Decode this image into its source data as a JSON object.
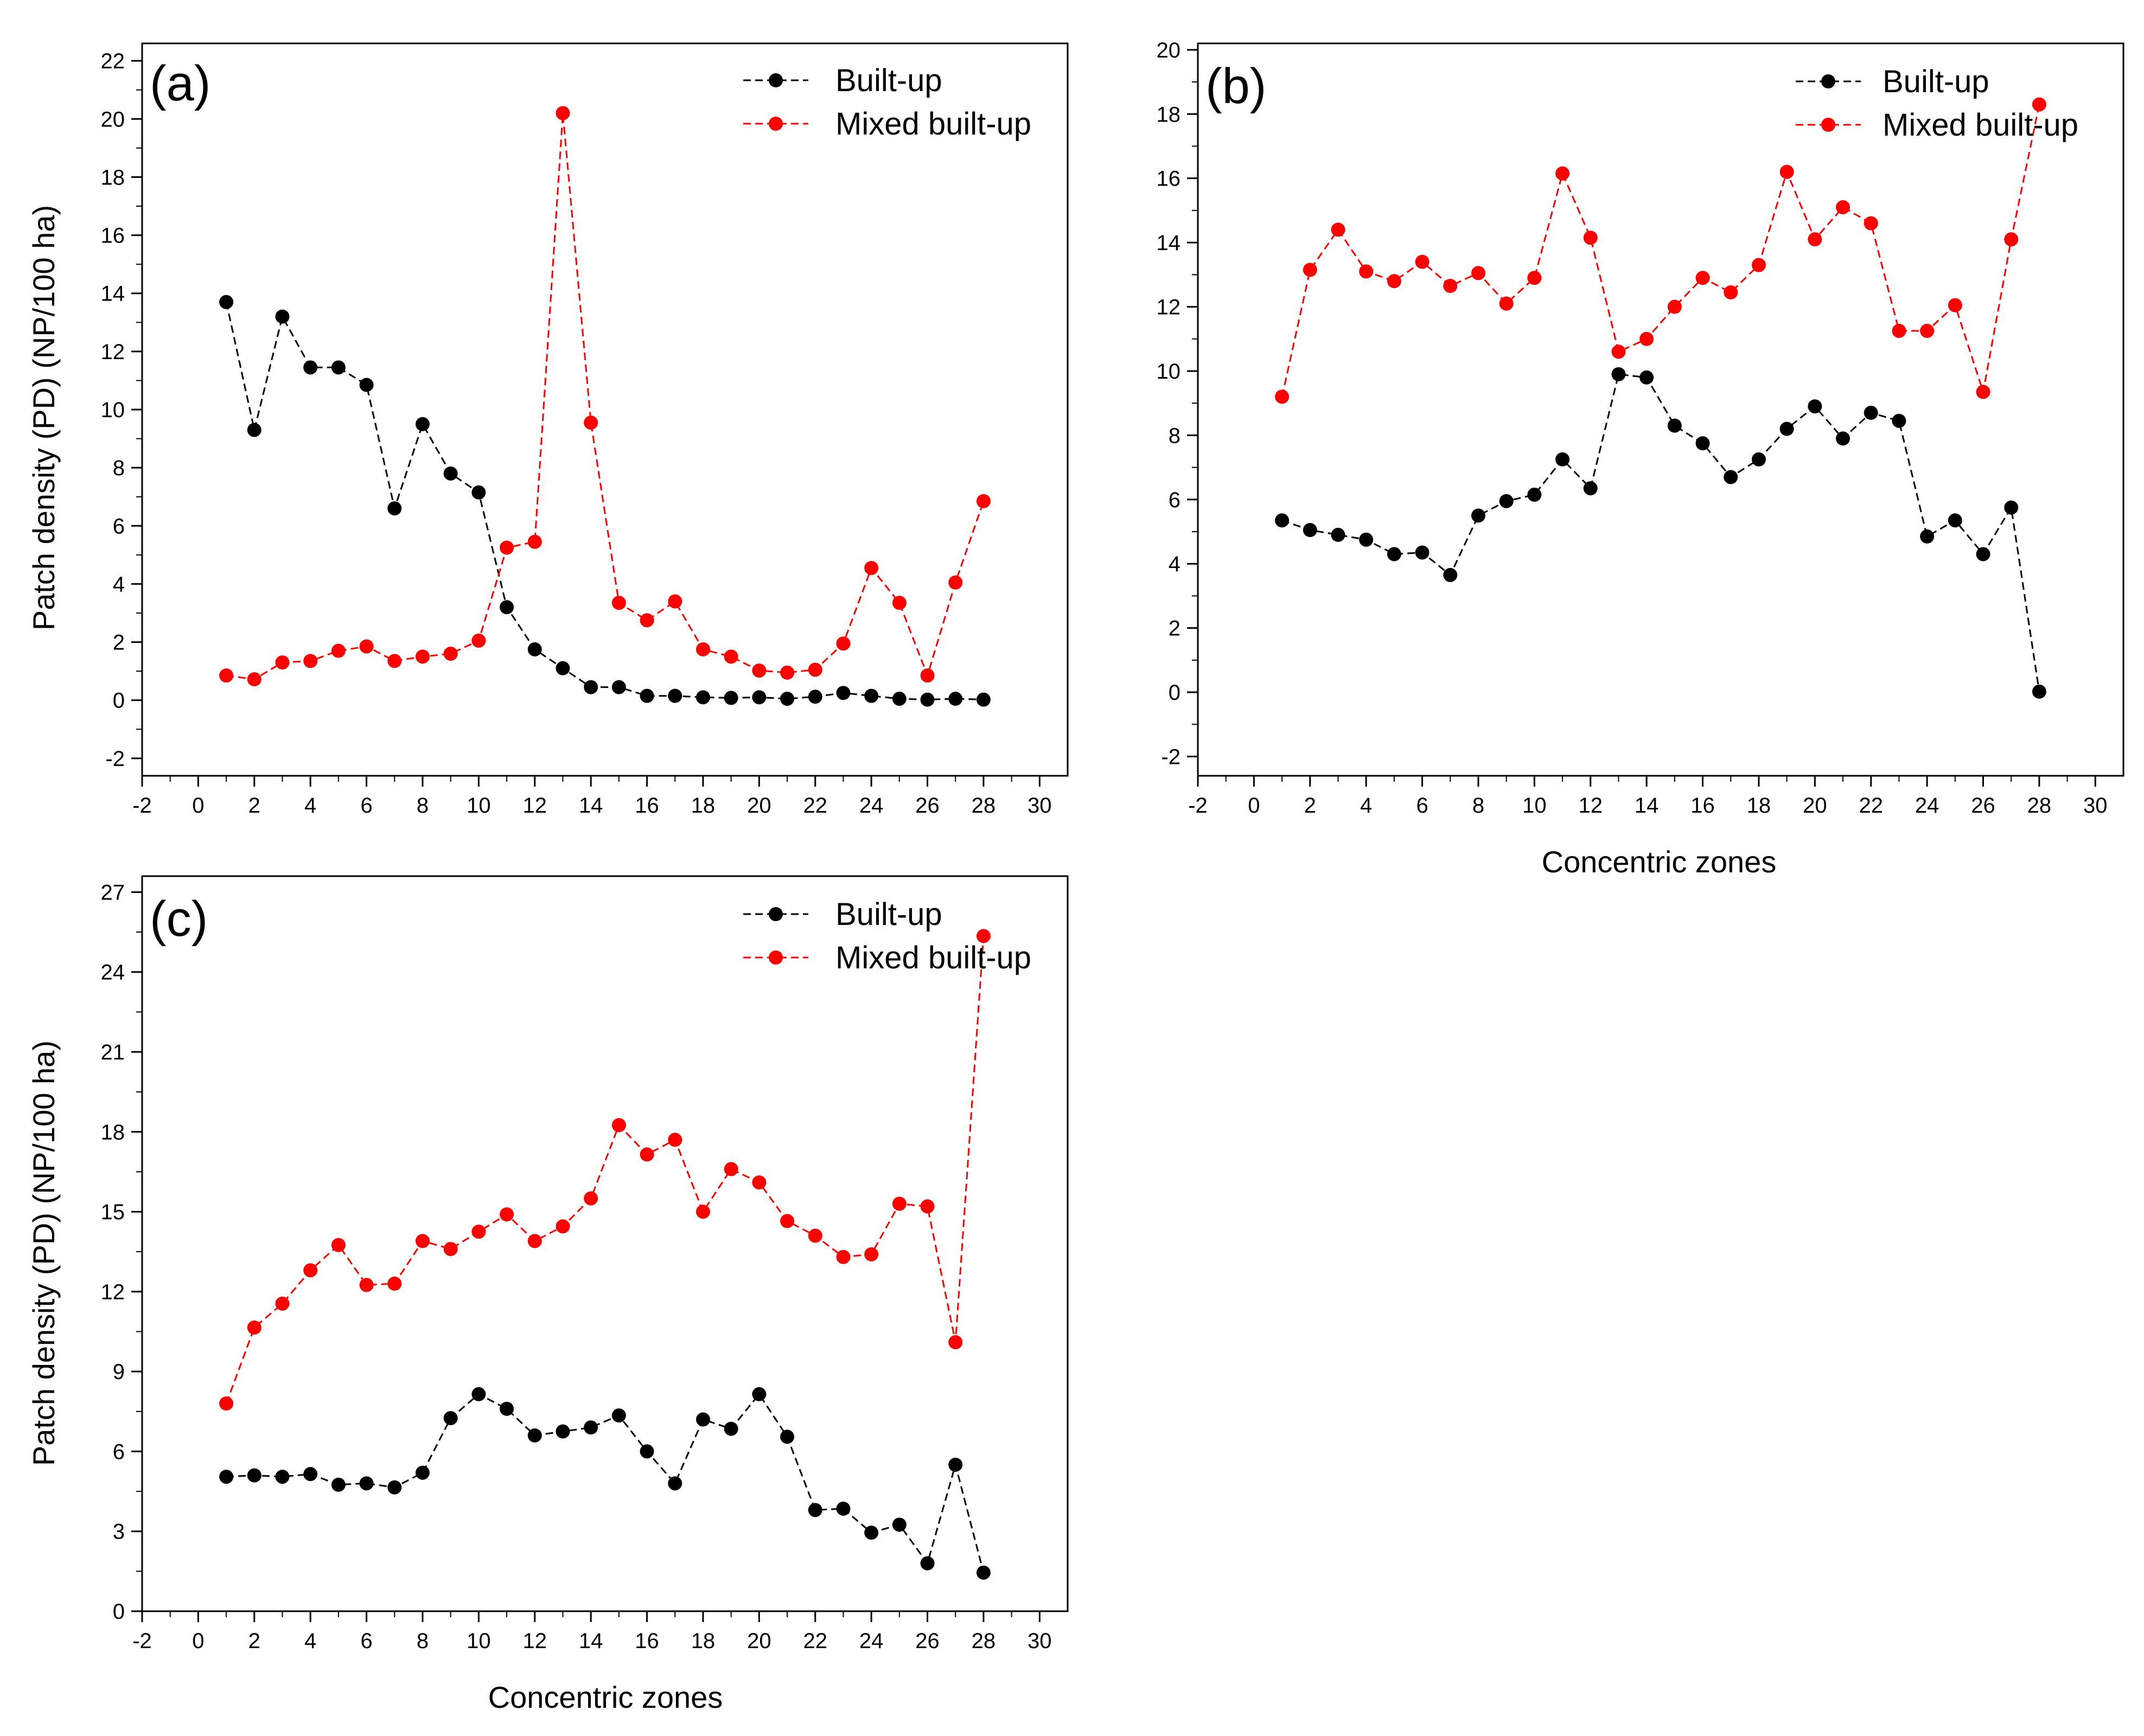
{
  "colors": {
    "built_up": "#000000",
    "mixed_built_up": "#ff0000",
    "axis": "#000000",
    "background": "#ffffff"
  },
  "chart_data": [
    {
      "type": "line",
      "panel": "(a)",
      "xlabel": "",
      "ylabel": "Patch density (PD) (NP/100 ha)",
      "xlim": [
        -2,
        31
      ],
      "ylim": [
        -2.6,
        22.6
      ],
      "xticks": [
        -2,
        0,
        2,
        4,
        6,
        8,
        10,
        12,
        14,
        16,
        18,
        20,
        22,
        24,
        26,
        28,
        30
      ],
      "yticks": [
        -2,
        0,
        2,
        4,
        6,
        8,
        10,
        12,
        14,
        16,
        18,
        20,
        22
      ],
      "tick_labels_x": [
        "-2",
        "0",
        "2",
        "4",
        "6",
        "8",
        "10",
        "12",
        "14",
        "16",
        "18",
        "20",
        "22",
        "24",
        "26",
        "28",
        "30"
      ],
      "tick_labels_y": [
        "-2",
        "0",
        "2",
        "4",
        "6",
        "8",
        "10",
        "12",
        "14",
        "16",
        "18",
        "20",
        "22"
      ],
      "legend_position": "top-right",
      "x": [
        1,
        2,
        3,
        4,
        5,
        6,
        7,
        8,
        9,
        10,
        11,
        12,
        13,
        14,
        15,
        16,
        17,
        18,
        19,
        20,
        21,
        22,
        23,
        24,
        25,
        26,
        27,
        28
      ],
      "series": [
        {
          "name": "Built-up",
          "color": "#000000",
          "values": [
            13.7,
            9.3,
            13.2,
            11.45,
            11.45,
            10.85,
            6.6,
            9.5,
            7.8,
            7.15,
            3.2,
            1.75,
            1.1,
            0.45,
            0.45,
            0.15,
            0.15,
            0.1,
            0.08,
            0.1,
            0.05,
            0.12,
            0.25,
            0.15,
            0.05,
            0.02,
            0.05,
            0.02
          ]
        },
        {
          "name": "Mixed built-up",
          "color": "#ff0000",
          "values": [
            0.85,
            0.72,
            1.3,
            1.35,
            1.7,
            1.85,
            1.35,
            1.5,
            1.6,
            2.05,
            5.25,
            5.45,
            20.2,
            9.55,
            3.35,
            2.75,
            3.4,
            1.75,
            1.5,
            1.02,
            0.95,
            1.05,
            1.95,
            4.55,
            3.35,
            0.85,
            4.05,
            6.85
          ]
        }
      ]
    },
    {
      "type": "line",
      "panel": "(b)",
      "xlabel": "Concentric zones",
      "ylabel": "",
      "xlim": [
        -2,
        31
      ],
      "ylim": [
        -2.6,
        20.2
      ],
      "xticks": [
        -2,
        0,
        2,
        4,
        6,
        8,
        10,
        12,
        14,
        16,
        18,
        20,
        22,
        24,
        26,
        28,
        30
      ],
      "yticks": [
        -2,
        0,
        2,
        4,
        6,
        8,
        10,
        12,
        14,
        16,
        18,
        20
      ],
      "tick_labels_x": [
        "-2",
        "0",
        "2",
        "4",
        "6",
        "8",
        "10",
        "12",
        "14",
        "16",
        "18",
        "20",
        "22",
        "24",
        "26",
        "28",
        "30"
      ],
      "tick_labels_y": [
        "-2",
        "0",
        "2",
        "4",
        "6",
        "8",
        "10",
        "12",
        "14",
        "16",
        "18",
        "20"
      ],
      "legend_position": "top-right",
      "x": [
        1,
        2,
        3,
        4,
        5,
        6,
        7,
        8,
        9,
        10,
        11,
        12,
        13,
        14,
        15,
        16,
        17,
        18,
        19,
        20,
        21,
        22,
        23,
        24,
        25,
        26,
        27,
        28
      ],
      "series": [
        {
          "name": "Built-up",
          "color": "#000000",
          "values": [
            5.35,
            5.05,
            4.9,
            4.75,
            4.3,
            4.35,
            3.65,
            5.5,
            5.95,
            6.15,
            7.25,
            6.35,
            9.9,
            9.8,
            8.3,
            7.75,
            6.7,
            7.25,
            8.2,
            8.9,
            7.9,
            8.7,
            8.45,
            4.85,
            5.35,
            4.3,
            5.75,
            0.02
          ]
        },
        {
          "name": "Mixed built-up",
          "color": "#ff0000",
          "values": [
            9.2,
            13.15,
            14.4,
            13.1,
            12.8,
            13.4,
            12.65,
            13.05,
            12.1,
            12.9,
            16.15,
            14.15,
            10.6,
            11.0,
            12.0,
            12.9,
            12.45,
            13.3,
            16.2,
            14.1,
            15.1,
            14.6,
            11.25,
            11.25,
            12.05,
            9.35,
            14.1,
            18.3
          ]
        }
      ]
    },
    {
      "type": "line",
      "panel": "(c)",
      "xlabel": "Concentric zones",
      "ylabel": "Patch density (PD) (NP/100 ha)",
      "xlim": [
        -2,
        31
      ],
      "ylim": [
        0,
        27.6
      ],
      "xticks": [
        -2,
        0,
        2,
        4,
        6,
        8,
        10,
        12,
        14,
        16,
        18,
        20,
        22,
        24,
        26,
        28,
        30
      ],
      "yticks": [
        0,
        3,
        6,
        9,
        12,
        15,
        18,
        21,
        24,
        27
      ],
      "tick_labels_x": [
        "-2",
        "0",
        "2",
        "4",
        "6",
        "8",
        "10",
        "12",
        "14",
        "16",
        "18",
        "20",
        "22",
        "24",
        "26",
        "28",
        "30"
      ],
      "tick_labels_y": [
        "0",
        "3",
        "6",
        "9",
        "12",
        "15",
        "18",
        "21",
        "24",
        "27"
      ],
      "legend_position": "top-right",
      "x": [
        1,
        2,
        3,
        4,
        5,
        6,
        7,
        8,
        9,
        10,
        11,
        12,
        13,
        14,
        15,
        16,
        17,
        18,
        19,
        20,
        21,
        22,
        23,
        24,
        25,
        26,
        27,
        28
      ],
      "series": [
        {
          "name": "Built-up",
          "color": "#000000",
          "values": [
            5.05,
            5.1,
            5.05,
            5.15,
            4.75,
            4.8,
            4.65,
            5.2,
            7.25,
            8.15,
            7.6,
            6.6,
            6.75,
            6.9,
            7.35,
            6.0,
            4.8,
            7.2,
            6.85,
            8.15,
            6.55,
            3.8,
            3.85,
            2.95,
            3.25,
            1.8,
            5.5,
            1.45
          ]
        },
        {
          "name": "Mixed built-up",
          "color": "#ff0000",
          "values": [
            7.8,
            10.65,
            11.55,
            12.8,
            13.75,
            12.25,
            12.3,
            13.9,
            13.6,
            14.25,
            14.9,
            13.9,
            14.45,
            15.5,
            18.25,
            17.15,
            17.7,
            15.0,
            16.6,
            16.1,
            14.65,
            14.1,
            13.3,
            13.4,
            15.3,
            15.2,
            10.1,
            25.35
          ]
        }
      ]
    }
  ]
}
